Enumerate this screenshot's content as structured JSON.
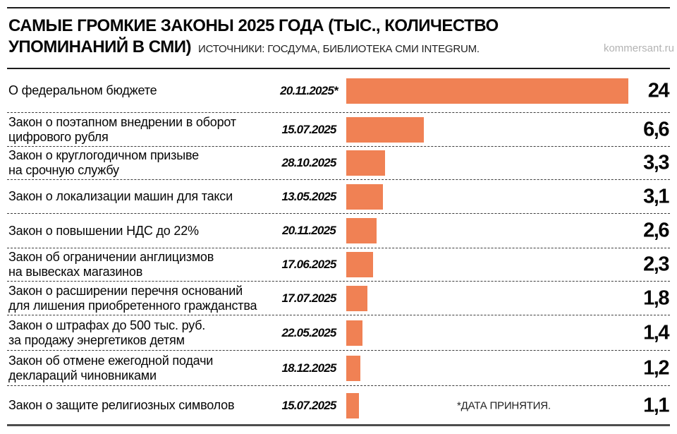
{
  "header": {
    "title_line1": "САМЫЕ ГРОМКИЕ ЗАКОНЫ 2025 ГОДА (ТЫС., КОЛИЧЕСТВО",
    "title_line2": "УПОМИНАНИЙ В СМИ)",
    "source": "ИСТОЧНИКИ: ГОСДУМА, БИБЛИОТЕКА СМИ INTEGRUM.",
    "site": "kommersant.ru"
  },
  "footnote": "*ДАТА ПРИНЯТИЯ.",
  "chart_data": {
    "type": "bar",
    "orientation": "horizontal",
    "title": "САМЫЕ ГРОМКИЕ ЗАКОНЫ 2025 ГОДА (ТЫС., КОЛИЧЕСТВО УПОМИНАНИЙ В СМИ)",
    "unit": "тыс. упоминаний в СМИ",
    "bar_color": "#f08154",
    "xlim": [
      0,
      24
    ],
    "grid": false,
    "legend": "none",
    "rows": [
      {
        "label": "О федеральном бюджете",
        "date": "20.11.2025*",
        "value": 24,
        "value_label": "24"
      },
      {
        "label": "Закон о поэтапном внедрении в оборот\nцифрового рубля",
        "date": "15.07.2025",
        "value": 6.6,
        "value_label": "6,6"
      },
      {
        "label": "Закон о круглогодичном призыве\nна срочную службу",
        "date": "28.10.2025",
        "value": 3.3,
        "value_label": "3,3"
      },
      {
        "label": "Закон о локализации машин для такси",
        "date": "13.05.2025",
        "value": 3.1,
        "value_label": "3,1"
      },
      {
        "label": "Закон о повышении НДС до 22%",
        "date": "20.11.2025",
        "value": 2.6,
        "value_label": "2,6"
      },
      {
        "label": "Закон об ограничении англицизмов\nна вывесках магазинов",
        "date": "17.06.2025",
        "value": 2.3,
        "value_label": "2,3"
      },
      {
        "label": "Закон о расширении перечня оснований\nдля лишения приобретенного гражданства",
        "date": "17.07.2025",
        "value": 1.8,
        "value_label": "1,8"
      },
      {
        "label": "Закон о штрафах до 500 тыс. руб.\nза продажу энергетиков детям",
        "date": "22.05.2025",
        "value": 1.4,
        "value_label": "1,4"
      },
      {
        "label": "Закон об отмене ежегодной подачи\nдеклараций чиновниками",
        "date": "18.12.2025",
        "value": 1.2,
        "value_label": "1,2"
      },
      {
        "label": "Закон о защите религиозных символов",
        "date": "15.07.2025",
        "value": 1.1,
        "value_label": "1,1"
      }
    ]
  }
}
